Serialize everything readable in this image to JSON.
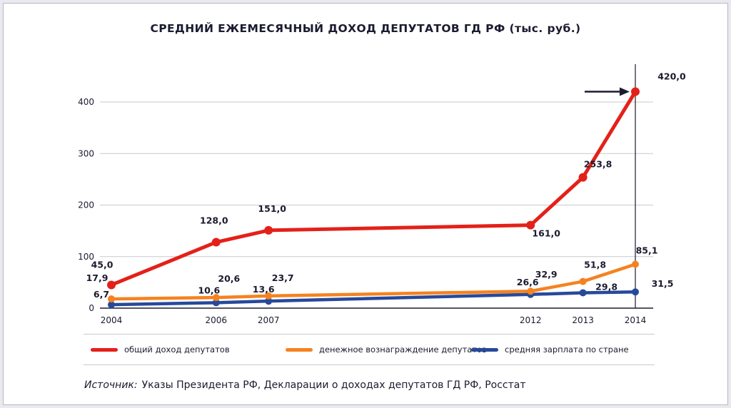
{
  "title": "СРЕДНИЙ ЕЖЕМЕСЯЧНЫЙ ДОХОД ДЕПУТАТОВ ГД РФ (тыс. руб.)",
  "source": {
    "label": "Источник:",
    "text": "Указы Президента РФ, Декларации о доходах депутатов ГД РФ, Росстат"
  },
  "colors": {
    "red": "#e32119",
    "orange": "#f58220",
    "blue": "#27499b",
    "text": "#1b1b30",
    "grid": "#c9c9d0"
  },
  "chart_data": {
    "type": "line",
    "title": "СРЕДНИЙ ЕЖЕМЕСЯЧНЫЙ ДОХОД ДЕПУТАТОВ ГД РФ (тыс. руб.)",
    "x": [
      2004,
      2006,
      2007,
      2012,
      2013,
      2014
    ],
    "x_tick_labels": [
      "2004",
      "2006",
      "2007",
      "2012",
      "2013",
      "2014"
    ],
    "y_ticks": [
      0,
      100,
      200,
      300,
      400
    ],
    "ylim": [
      0,
      470
    ],
    "grid": "horizontal",
    "legend_position": "bottom",
    "annotation": {
      "type": "arrow",
      "series": "total_income",
      "x": 2014,
      "value": 420.0
    },
    "series": [
      {
        "key": "total_income",
        "name": "общий доход депутатов",
        "color": "#e32119",
        "values": [
          45.0,
          128.0,
          151.0,
          161.0,
          253.8,
          420.0
        ]
      },
      {
        "key": "remuneration",
        "name": "денежное вознаграждение депутатов",
        "color": "#f58220",
        "values": [
          17.9,
          20.6,
          23.7,
          32.9,
          51.8,
          85.1
        ]
      },
      {
        "key": "avg_salary",
        "name": "средняя зарплата по стране",
        "color": "#27499b",
        "values": [
          6.7,
          10.6,
          13.6,
          26.6,
          29.8,
          31.5
        ]
      }
    ]
  }
}
